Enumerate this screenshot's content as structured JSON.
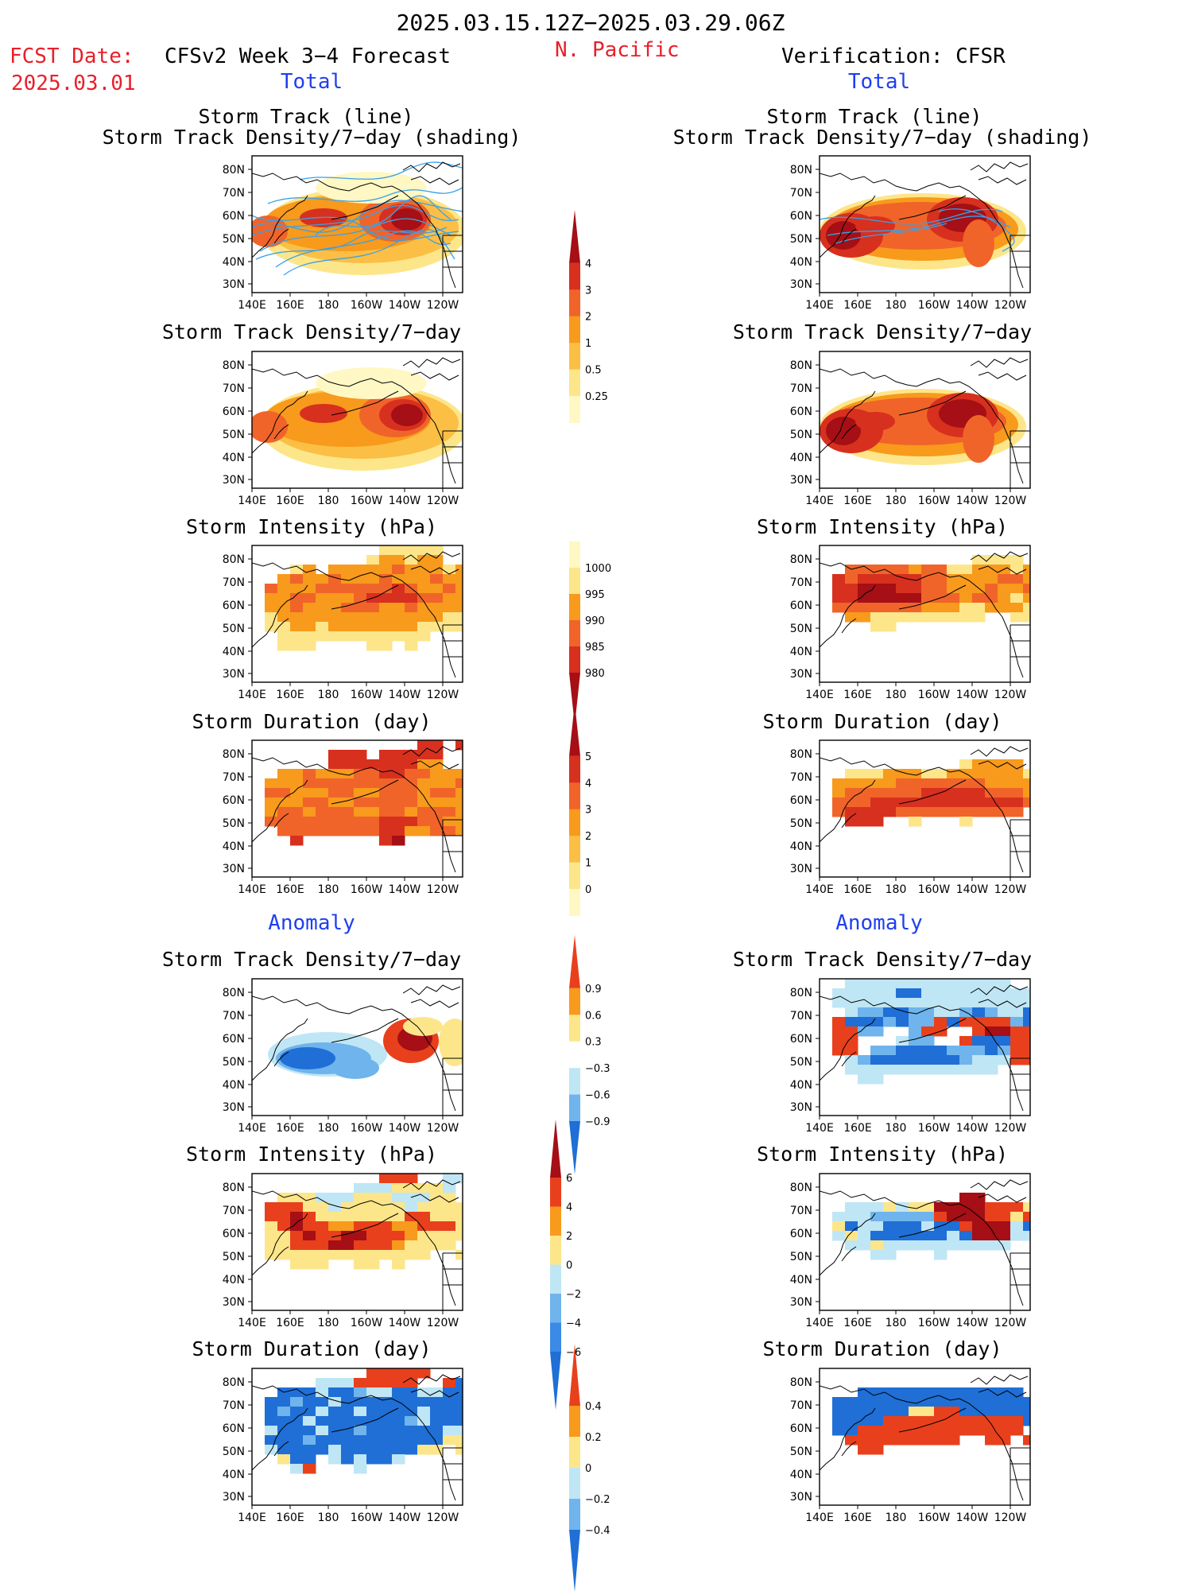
{
  "header": {
    "date_range": "2025.03.15.12Z−2025.03.29.06Z",
    "fcst_label": "FCST Date:",
    "fcst_date": "2025.03.01",
    "left_title": "CFSv2 Week 3−4 Forecast",
    "region": "N. Pacific",
    "right_title": "Verification: CFSR"
  },
  "sections": {
    "total_left": "Total",
    "total_right": "Total",
    "anomaly_left": "Anomaly",
    "anomaly_right": "Anomaly"
  },
  "panels": {
    "track": {
      "title_1": "Storm Track (line)",
      "title_2": "Storm Track Density/7−day (shading)"
    },
    "density": {
      "title": "Storm Track Density/7−day"
    },
    "intensity": {
      "title": "Storm Intensity (hPa)"
    },
    "duration": {
      "title": "Storm Duration (day)"
    }
  },
  "axes": {
    "lat_labels": [
      "80N",
      "70N",
      "60N",
      "50N",
      "40N",
      "30N"
    ],
    "lon_labels": [
      "140E",
      "160E",
      "180",
      "160W",
      "140W",
      "120W"
    ]
  },
  "colorbars": [
    {
      "id": "density_total",
      "labels": [
        "4",
        "3",
        "2",
        "1",
        "0.5",
        "0.25"
      ],
      "colors": [
        "#a50f15",
        "#d7301f",
        "#f0642a",
        "#f89a1c",
        "#fbbf45",
        "#fde68a",
        "#fff8c4"
      ]
    },
    {
      "id": "intensity_total",
      "labels": [
        "1000",
        "995",
        "990",
        "985",
        "980"
      ],
      "colors": [
        "#fff8c4",
        "#fde68a",
        "#f89a1c",
        "#f0642a",
        "#d7301f",
        "#a50f15"
      ]
    },
    {
      "id": "duration_total",
      "labels": [
        "5",
        "4",
        "3",
        "2",
        "1",
        "0"
      ],
      "colors": [
        "#a50f15",
        "#d7301f",
        "#f0642a",
        "#f89a1c",
        "#fbbf45",
        "#fde68a",
        "#fff8c4"
      ]
    },
    {
      "id": "density_anom",
      "labels": [
        "0.9",
        "0.6",
        "0.3",
        "−0.3",
        "−0.6",
        "−0.9"
      ],
      "colors": [
        "#e8401c",
        "#f89a1c",
        "#fde68a",
        "#ffffff",
        "#bfe6f5",
        "#6fb4ec",
        "#1f6fd6"
      ]
    },
    {
      "id": "intensity_anom",
      "labels": [
        "6",
        "4",
        "2",
        "0",
        "−2",
        "−4",
        "−6"
      ],
      "colors": [
        "#a50f15",
        "#e8401c",
        "#f89a1c",
        "#fde68a",
        "#bfe6f5",
        "#6fb4ec",
        "#3b8ae6",
        "#1f6fd6"
      ]
    },
    {
      "id": "duration_anom",
      "labels": [
        "0.4",
        "0.2",
        "0",
        "−0.2",
        "−0.4"
      ],
      "colors": [
        "#e8401c",
        "#f89a1c",
        "#fde68a",
        "#bfe6f5",
        "#6fb4ec",
        "#1f6fd6"
      ]
    }
  ],
  "colors": {
    "red_text": "#e8202a",
    "blue_text": "#1f3ff0",
    "track_line": "#3aa0e8"
  }
}
